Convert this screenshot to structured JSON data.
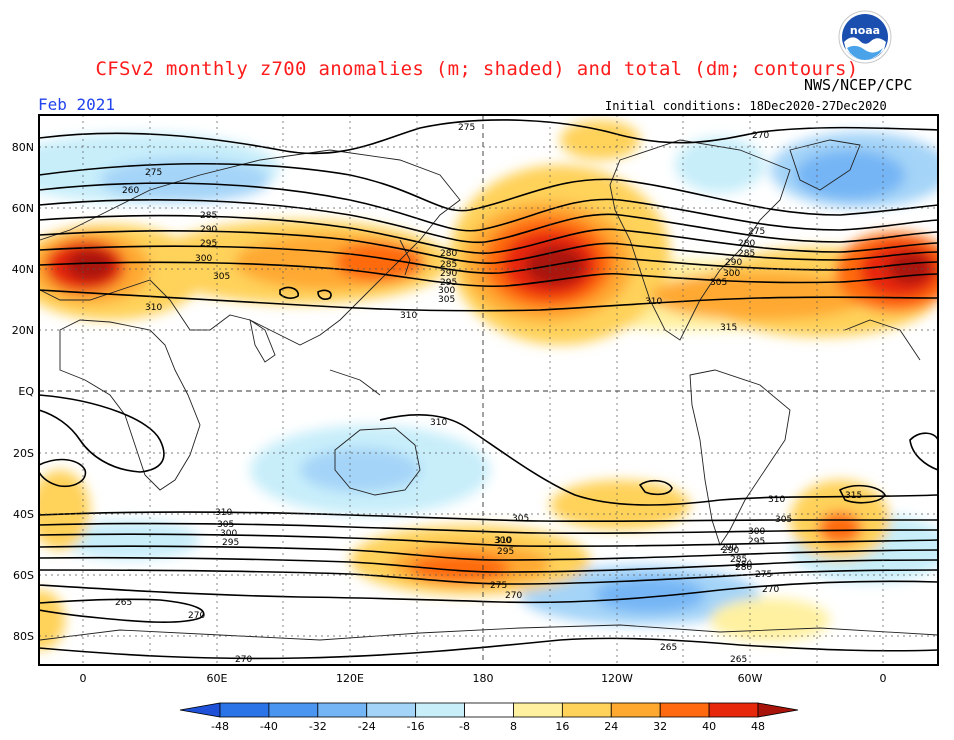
{
  "header": {
    "title": "CFSv2 monthly z700 anomalies (m; shaded) and total (dm; contours)",
    "month": "Feb 2021",
    "agency": "NWS/NCEP/CPC",
    "initial_conditions": "Initial conditions: 18Dec2020-27Dec2020",
    "logo_text": "noaa"
  },
  "map": {
    "lat_labels": [
      "80N",
      "60N",
      "40N",
      "20N",
      "EQ",
      "20S",
      "40S",
      "60S",
      "80S"
    ],
    "lon_labels": [
      "0",
      "60E",
      "120E",
      "180",
      "120W",
      "60W",
      "0"
    ],
    "contour_labels": [
      "275",
      "260",
      "285",
      "290",
      "295",
      "300",
      "305",
      "310",
      "275",
      "280",
      "285",
      "290",
      "295",
      "300",
      "305",
      "310",
      "270",
      "275",
      "280",
      "285",
      "290",
      "300",
      "305",
      "310",
      "315",
      "310",
      "310",
      "305",
      "300",
      "295",
      "310",
      "305",
      "300",
      "295",
      "290",
      "285",
      "280",
      "275",
      "270",
      "265",
      "270",
      "270",
      "265",
      "265",
      "310",
      "305",
      "300",
      "295",
      "290",
      "280",
      "275",
      "270",
      "315"
    ],
    "colors": {
      "neg48": "#1e50d8",
      "neg40": "#2b74e8",
      "neg32": "#4a95f0",
      "neg24": "#74b5f5",
      "neg16": "#a4d4f8",
      "neg8": "#c8eefa",
      "zero": "#ffffff",
      "pos8": "#fff1a0",
      "pos16": "#ffd25a",
      "pos24": "#ffa930",
      "pos32": "#ff6a10",
      "pos40": "#e8280a",
      "pos48": "#a8140a"
    }
  },
  "colorbar": {
    "labels": [
      "-48",
      "-40",
      "-32",
      "-24",
      "-16",
      "-8",
      "8",
      "16",
      "24",
      "32",
      "40",
      "48"
    ],
    "colors": [
      "#1e50d8",
      "#2b74e8",
      "#4a95f0",
      "#74b5f5",
      "#a4d4f8",
      "#c8eefa",
      "#ffffff",
      "#fff1a0",
      "#ffd25a",
      "#ffa930",
      "#ff6a10",
      "#e8280a",
      "#a8140a"
    ]
  }
}
